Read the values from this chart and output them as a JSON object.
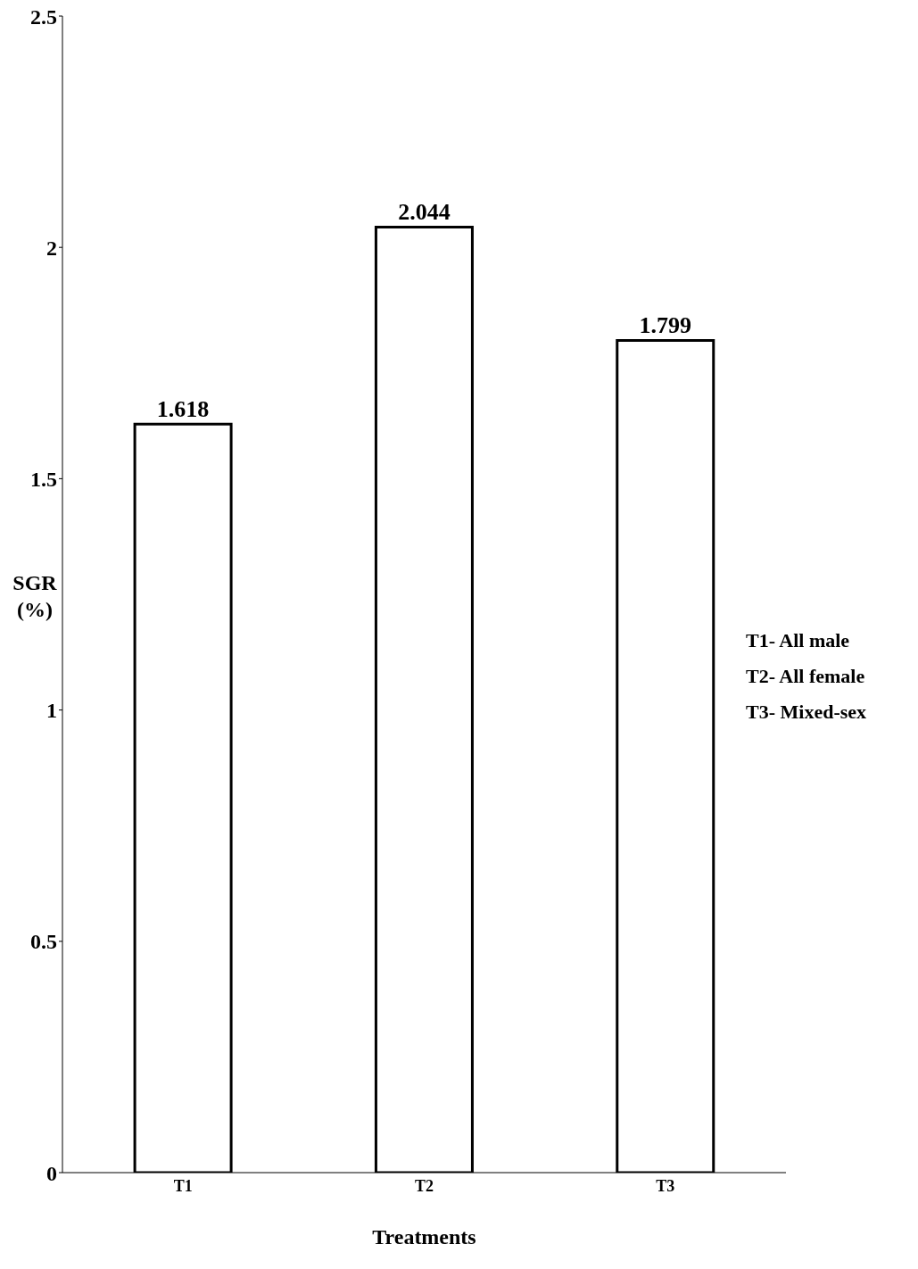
{
  "chart_data": {
    "type": "bar",
    "xlabel": "Treatments",
    "ylabel": "SGR (%)",
    "categories": [
      "T1",
      "T2",
      "T3"
    ],
    "values": [
      1.618,
      2.044,
      1.799
    ],
    "color": "#ffffff",
    "ylim": [
      0,
      2.5
    ],
    "yticks": [
      0,
      0.5,
      1,
      1.5,
      2,
      2.5
    ],
    "data_labels": true,
    "annotations": [
      "T1- All male",
      "T2- All female",
      "T3- Mixed-sex"
    ]
  }
}
